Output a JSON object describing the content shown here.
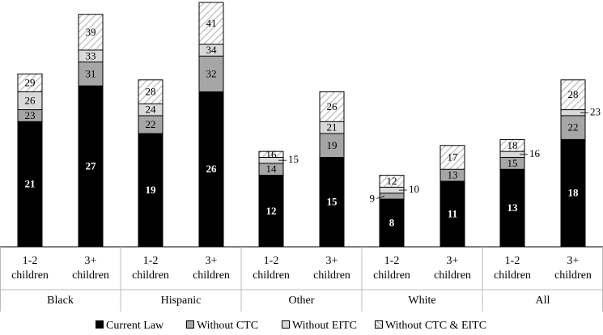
{
  "chart_data": {
    "type": "overlay-bar",
    "groups": [
      "Black",
      "Hispanic",
      "Other",
      "White",
      "All"
    ],
    "categories": [
      "1-2 children",
      "3+ children",
      "1-2 children",
      "3+ children",
      "1-2 children",
      "3+ children",
      "1-2 children",
      "3+ children",
      "1-2 children",
      "3+ children"
    ],
    "series": [
      {
        "name": "Current Law",
        "color": "#000000",
        "values": [
          21,
          27,
          19,
          26,
          12,
          15,
          8,
          11,
          13,
          18
        ]
      },
      {
        "name": "Without CTC",
        "color": "#a6a6a6",
        "values": [
          23,
          31,
          22,
          32,
          14,
          19,
          9,
          13,
          15,
          22
        ]
      },
      {
        "name": "Without EITC",
        "color": "#d9d9d9",
        "values": [
          26,
          33,
          24,
          34,
          15,
          21,
          10,
          null,
          16,
          23
        ]
      },
      {
        "name": "Without CTC & EITC",
        "color": "hatch",
        "values": [
          29,
          39,
          28,
          41,
          16,
          26,
          12,
          17,
          18,
          28
        ]
      }
    ]
  }
}
